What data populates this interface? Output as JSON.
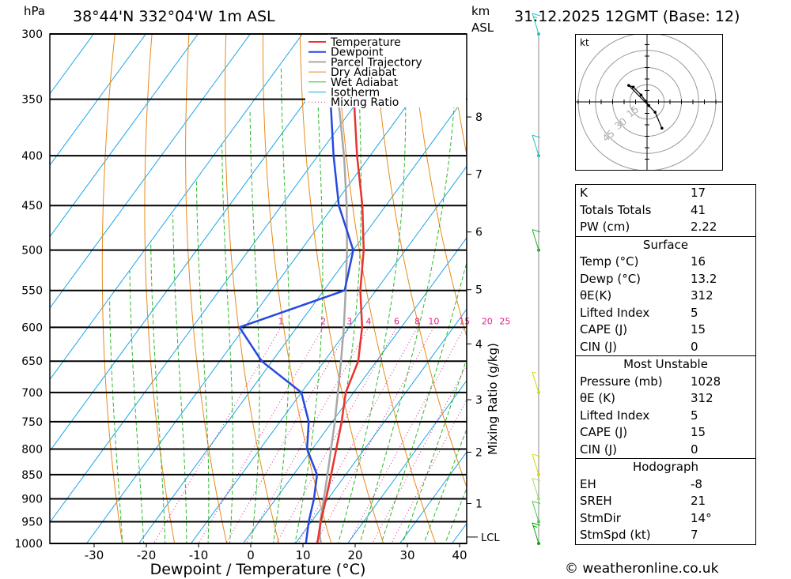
{
  "header": {
    "pressure_unit": "hPa",
    "location": "38°44'N  332°04'W  1m  ASL",
    "height_unit_line1": "km",
    "height_unit_line2": "ASL",
    "datetime": "31.12.2025  12GMT  (Base: 12)"
  },
  "chart_data": {
    "type": "line",
    "subtype": "skew-t log-p diagram",
    "xlabel": "Dewpoint / Temperature (°C)",
    "ylabel": "hPa",
    "x_ticks": [
      -30,
      -20,
      -10,
      0,
      10,
      20,
      30,
      40
    ],
    "pressure_levels": [
      300,
      350,
      400,
      450,
      500,
      550,
      600,
      650,
      700,
      750,
      800,
      850,
      900,
      950,
      1000
    ],
    "height_ticks_km": [
      {
        "km": "1",
        "p": 910
      },
      {
        "km": "2",
        "p": 806
      },
      {
        "km": "3",
        "p": 712
      },
      {
        "km": "4",
        "p": 624
      },
      {
        "km": "5",
        "p": 549
      },
      {
        "km": "6",
        "p": 479
      },
      {
        "km": "7",
        "p": 418
      },
      {
        "km": "8",
        "p": 365
      }
    ],
    "lcl_label": "LCL",
    "lcl_pressure": 985,
    "mixing_ratio_label": "Mixing Ratio (g/kg)",
    "mixing_ratio_values": [
      "1",
      "2",
      "3",
      "4",
      "6",
      "8",
      "10",
      "15",
      "20",
      "25"
    ],
    "legend": [
      "Temperature",
      "Dewpoint",
      "Parcel Trajectory",
      "Dry Adiabat",
      "Wet Adiabat",
      "Isotherm",
      "Mixing Ratio"
    ],
    "legend_position": "top-right",
    "colors": {
      "temperature": "#e8342e",
      "dewpoint": "#2748e0",
      "parcel": "#a8a8a8",
      "dry_adiabat": "#e88a1a",
      "wet_adiabat": "#2bb82b",
      "isotherm": "#1aa6e8",
      "mixing_ratio": "#e0208a"
    },
    "series": [
      {
        "name": "Temperature",
        "points": [
          [
            1016,
            16
          ],
          [
            1000,
            14.2
          ],
          [
            950,
            11.8
          ],
          [
            900,
            9.6
          ],
          [
            850,
            7.2
          ],
          [
            800,
            4.6
          ],
          [
            750,
            1.8
          ],
          [
            700,
            -1.5
          ],
          [
            650,
            -3.5
          ],
          [
            600,
            -7.5
          ],
          [
            550,
            -13
          ],
          [
            500,
            -18
          ],
          [
            450,
            -24.5
          ],
          [
            400,
            -32.5
          ],
          [
            350,
            -41
          ],
          [
            300,
            -50
          ]
        ]
      },
      {
        "name": "Dewpoint",
        "points": [
          [
            1016,
            13.2
          ],
          [
            1000,
            12
          ],
          [
            950,
            9.5
          ],
          [
            900,
            7.3
          ],
          [
            850,
            4.5
          ],
          [
            800,
            -1
          ],
          [
            750,
            -4.5
          ],
          [
            700,
            -10
          ],
          [
            650,
            -22
          ],
          [
            600,
            -31
          ],
          [
            550,
            -16
          ],
          [
            500,
            -20
          ],
          [
            450,
            -29
          ],
          [
            400,
            -37
          ],
          [
            350,
            -45.5
          ],
          [
            300,
            -54
          ]
        ]
      },
      {
        "name": "Parcel Trajectory",
        "points": [
          [
            1016,
            16
          ],
          [
            985,
            13.8
          ],
          [
            950,
            11.7
          ],
          [
            900,
            9.2
          ],
          [
            850,
            6.5
          ],
          [
            800,
            3.6
          ],
          [
            750,
            0.5
          ],
          [
            700,
            -3
          ],
          [
            650,
            -6.8
          ],
          [
            600,
            -11
          ],
          [
            550,
            -15.8
          ],
          [
            500,
            -21.2
          ],
          [
            450,
            -27.5
          ],
          [
            400,
            -35
          ],
          [
            350,
            -44
          ],
          [
            300,
            -55
          ]
        ]
      }
    ]
  },
  "wind_barbs": {
    "color_note": "barbs drawn on right side axis",
    "barbs": [
      {
        "p": 1000,
        "speed_kt": 15,
        "color": "#00aa00"
      },
      {
        "p": 950,
        "speed_kt": 10,
        "color": "#40d040"
      },
      {
        "p": 900,
        "speed_kt": 10,
        "color": "#a0e060"
      },
      {
        "p": 850,
        "speed_kt": 10,
        "color": "#d8d800"
      },
      {
        "p": 700,
        "speed_kt": 5,
        "color": "#d8d800"
      },
      {
        "p": 500,
        "speed_kt": 10,
        "color": "#20b020"
      },
      {
        "p": 400,
        "speed_kt": 10,
        "color": "#20c0c0"
      },
      {
        "p": 300,
        "speed_kt": 15,
        "color": "#20c0c0"
      }
    ]
  },
  "hodograph": {
    "unit": "kt",
    "ring_labels": [
      "15",
      "30",
      "45"
    ],
    "trace_kt": [
      [
        0.8,
        -1.6
      ],
      [
        -0.5,
        0.3
      ],
      [
        -2.6,
        3.0
      ],
      [
        -6,
        6.5
      ],
      [
        -8,
        7.2
      ],
      [
        3.5,
        -4.5
      ],
      [
        6.5,
        -11.5
      ]
    ]
  },
  "indices": {
    "top": [
      {
        "label": "K",
        "value": "17"
      },
      {
        "label": "Totals Totals",
        "value": "41"
      },
      {
        "label": "PW (cm)",
        "value": "2.22"
      }
    ],
    "surface": {
      "title": "Surface",
      "rows": [
        {
          "label": "Temp (°C)",
          "value": "16"
        },
        {
          "label": "Dewp (°C)",
          "value": "13.2"
        },
        {
          "label": "θE(K)",
          "value": "312"
        },
        {
          "label": "Lifted Index",
          "value": "5"
        },
        {
          "label": "CAPE (J)",
          "value": "15"
        },
        {
          "label": "CIN (J)",
          "value": "0"
        }
      ]
    },
    "most_unstable": {
      "title": "Most Unstable",
      "rows": [
        {
          "label": "Pressure (mb)",
          "value": "1028"
        },
        {
          "label": "θE (K)",
          "value": "312"
        },
        {
          "label": "Lifted Index",
          "value": "5"
        },
        {
          "label": "CAPE (J)",
          "value": "15"
        },
        {
          "label": "CIN (J)",
          "value": "0"
        }
      ]
    },
    "hodograph": {
      "title": "Hodograph",
      "rows": [
        {
          "label": "EH",
          "value": "-8"
        },
        {
          "label": "SREH",
          "value": "21"
        },
        {
          "label": "StmDir",
          "value": "14°"
        },
        {
          "label": "StmSpd (kt)",
          "value": "7"
        }
      ]
    }
  },
  "credit": "© weatheronline.co.uk"
}
